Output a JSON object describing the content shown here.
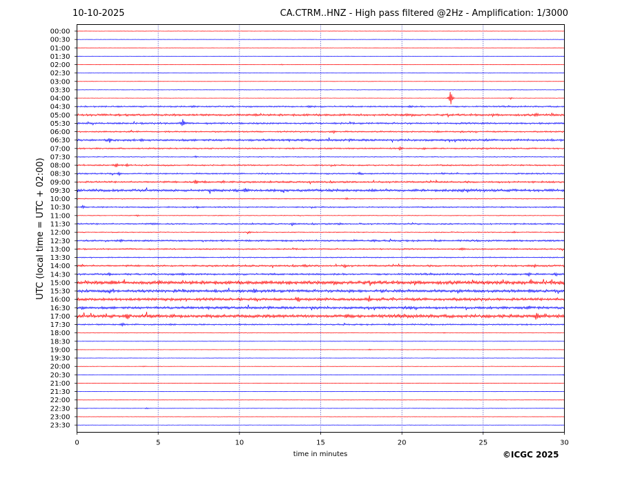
{
  "header": {
    "date": "10-10-2025",
    "title": "CA.CTRM..HNZ - High pass filtered @2Hz - Amplification: 1/3000"
  },
  "footer": {
    "copyright": "©ICGC 2025"
  },
  "colors": {
    "red": "#ff0000",
    "blue": "#0000ff",
    "grid": "#0000aa",
    "axis": "#000000"
  },
  "chart_data": {
    "type": "line",
    "xlabel": "time in minutes",
    "ylabel": "UTC (local time = UTC + 02:00)",
    "xlim": [
      0,
      30
    ],
    "xticks": [
      0,
      5,
      10,
      15,
      20,
      25,
      30
    ],
    "grid": "vertical dotted lines at x = 5, 10, 15, 20, 25",
    "rows": [
      {
        "label": "00:00",
        "color": "red",
        "activity": 0.05
      },
      {
        "label": "00:30",
        "color": "blue",
        "activity": 0.05
      },
      {
        "label": "01:00",
        "color": "red",
        "activity": 0.05
      },
      {
        "label": "01:30",
        "color": "blue",
        "activity": 0.05
      },
      {
        "label": "02:00",
        "color": "red",
        "activity": 0.05,
        "events": [
          {
            "x": 12.6,
            "amp": 0.15
          }
        ]
      },
      {
        "label": "02:30",
        "color": "blue",
        "activity": 0.05
      },
      {
        "label": "03:00",
        "color": "red",
        "activity": 0.05
      },
      {
        "label": "03:30",
        "color": "blue",
        "activity": 0.08
      },
      {
        "label": "04:00",
        "color": "red",
        "activity": 0.05,
        "events": [
          {
            "x": 23.0,
            "amp": 2.7
          },
          {
            "x": 26.7,
            "amp": 0.3
          }
        ]
      },
      {
        "label": "04:30",
        "color": "blue",
        "activity": 0.2,
        "events": [
          {
            "x": 7.2,
            "amp": 0.3
          },
          {
            "x": 14.3,
            "amp": 0.3
          },
          {
            "x": 20.5,
            "amp": 0.3
          }
        ]
      },
      {
        "label": "05:00",
        "color": "red",
        "activity": 0.3,
        "events": [
          {
            "x": 11.0,
            "amp": 0.35
          },
          {
            "x": 20.3,
            "amp": 0.3
          },
          {
            "x": 28.3,
            "amp": 0.35
          }
        ]
      },
      {
        "label": "05:30",
        "color": "blue",
        "activity": 0.25,
        "events": [
          {
            "x": 6.5,
            "amp": 1.2
          }
        ]
      },
      {
        "label": "06:00",
        "color": "red",
        "activity": 0.2,
        "events": [
          {
            "x": 15.8,
            "amp": 0.35
          },
          {
            "x": 22.2,
            "amp": 0.3
          }
        ]
      },
      {
        "label": "06:30",
        "color": "blue",
        "activity": 0.3,
        "events": [
          {
            "x": 2.0,
            "amp": 0.7
          },
          {
            "x": 4.0,
            "amp": 0.35
          }
        ]
      },
      {
        "label": "07:00",
        "color": "red",
        "activity": 0.2,
        "events": [
          {
            "x": 19.9,
            "amp": 0.45
          },
          {
            "x": 21.4,
            "amp": 0.35
          }
        ]
      },
      {
        "label": "07:30",
        "color": "blue",
        "activity": 0.12,
        "events": [
          {
            "x": 7.3,
            "amp": 0.25
          }
        ]
      },
      {
        "label": "08:00",
        "color": "red",
        "activity": 0.2,
        "events": [
          {
            "x": 2.4,
            "amp": 0.8
          },
          {
            "x": 3.1,
            "amp": 0.4
          }
        ]
      },
      {
        "label": "08:30",
        "color": "blue",
        "activity": 0.2,
        "events": [
          {
            "x": 2.6,
            "amp": 0.4
          },
          {
            "x": 17.4,
            "amp": 0.4
          }
        ]
      },
      {
        "label": "09:00",
        "color": "red",
        "activity": 0.25,
        "events": [
          {
            "x": 7.3,
            "amp": 0.8
          },
          {
            "x": 7.9,
            "amp": 0.4
          },
          {
            "x": 9.0,
            "amp": 0.35
          }
        ]
      },
      {
        "label": "09:30",
        "color": "blue",
        "activity": 0.35,
        "events": [
          {
            "x": 10.4,
            "amp": 0.7
          },
          {
            "x": 18.2,
            "amp": 0.35
          }
        ]
      },
      {
        "label": "10:00",
        "color": "red",
        "activity": 0.12,
        "events": [
          {
            "x": 16.6,
            "amp": 0.3
          }
        ]
      },
      {
        "label": "10:30",
        "color": "blue",
        "activity": 0.18,
        "events": [
          {
            "x": 0.4,
            "amp": 0.3
          },
          {
            "x": 7.4,
            "amp": 0.3
          }
        ]
      },
      {
        "label": "11:00",
        "color": "red",
        "activity": 0.1,
        "events": [
          {
            "x": 3.7,
            "amp": 0.25
          }
        ]
      },
      {
        "label": "11:30",
        "color": "blue",
        "activity": 0.2,
        "events": [
          {
            "x": 4.7,
            "amp": 0.3
          },
          {
            "x": 13.3,
            "amp": 0.3
          },
          {
            "x": 16.2,
            "amp": 0.3
          }
        ]
      },
      {
        "label": "12:00",
        "color": "red",
        "activity": 0.12,
        "events": [
          {
            "x": 10.6,
            "amp": 0.3
          },
          {
            "x": 26.9,
            "amp": 0.3
          }
        ]
      },
      {
        "label": "12:30",
        "color": "blue",
        "activity": 0.25,
        "events": [
          {
            "x": 2.7,
            "amp": 0.3
          },
          {
            "x": 18.3,
            "amp": 0.45
          }
        ]
      },
      {
        "label": "13:00",
        "color": "red",
        "activity": 0.2,
        "events": [
          {
            "x": 23.7,
            "amp": 0.4
          },
          {
            "x": 26.9,
            "amp": 0.3
          }
        ]
      },
      {
        "label": "13:30",
        "color": "blue",
        "activity": 0.15
      },
      {
        "label": "14:00",
        "color": "red",
        "activity": 0.25,
        "events": [
          {
            "x": 14.0,
            "amp": 0.35
          },
          {
            "x": 16.5,
            "amp": 0.45
          },
          {
            "x": 28.2,
            "amp": 0.45
          }
        ]
      },
      {
        "label": "14:30",
        "color": "blue",
        "activity": 0.25,
        "events": [
          {
            "x": 2.0,
            "amp": 0.35
          },
          {
            "x": 6.5,
            "amp": 0.35
          },
          {
            "x": 27.8,
            "amp": 0.45
          },
          {
            "x": 29.5,
            "amp": 0.45
          }
        ]
      },
      {
        "label": "15:00",
        "color": "red",
        "activity": 0.5,
        "events": [
          {
            "x": 2.2,
            "amp": 0.5
          },
          {
            "x": 5.0,
            "amp": 0.5
          },
          {
            "x": 13.1,
            "amp": 0.35
          },
          {
            "x": 29.8,
            "amp": 0.55
          }
        ]
      },
      {
        "label": "15:30",
        "color": "blue",
        "activity": 0.4,
        "events": [
          {
            "x": 8.5,
            "amp": 0.45
          },
          {
            "x": 10.9,
            "amp": 0.45
          },
          {
            "x": 27.9,
            "amp": 0.4
          }
        ]
      },
      {
        "label": "16:00",
        "color": "red",
        "activity": 0.4,
        "events": [
          {
            "x": 13.6,
            "amp": 0.9
          },
          {
            "x": 18.0,
            "amp": 1.0
          }
        ]
      },
      {
        "label": "16:30",
        "color": "blue",
        "activity": 0.35,
        "events": [
          {
            "x": 0.3,
            "amp": 0.35
          },
          {
            "x": 14.6,
            "amp": 0.35
          },
          {
            "x": 27.8,
            "amp": 0.4
          }
        ]
      },
      {
        "label": "17:00",
        "color": "red",
        "activity": 0.45,
        "events": [
          {
            "x": 3.1,
            "amp": 0.8
          },
          {
            "x": 16.6,
            "amp": 0.8
          },
          {
            "x": 28.3,
            "amp": 1.4
          },
          {
            "x": 28.8,
            "amp": 0.5
          }
        ]
      },
      {
        "label": "17:30",
        "color": "blue",
        "activity": 0.2,
        "events": [
          {
            "x": 2.8,
            "amp": 0.35
          },
          {
            "x": 5.8,
            "amp": 0.3
          }
        ]
      },
      {
        "label": "18:00",
        "color": "red",
        "activity": 0.05,
        "events": [
          {
            "x": 22.6,
            "amp": 0.2
          }
        ]
      },
      {
        "label": "18:30",
        "color": "blue",
        "activity": 0.05
      },
      {
        "label": "19:00",
        "color": "red",
        "activity": 0.05,
        "events": [
          {
            "x": 18.0,
            "amp": 0.2
          }
        ]
      },
      {
        "label": "19:30",
        "color": "blue",
        "activity": 0.05
      },
      {
        "label": "20:00",
        "color": "red",
        "activity": 0.05,
        "events": [
          {
            "x": 4.1,
            "amp": 0.2
          }
        ]
      },
      {
        "label": "20:30",
        "color": "blue",
        "activity": 0.05,
        "events": [
          {
            "x": 30.0,
            "amp": 0.2
          }
        ]
      },
      {
        "label": "21:00",
        "color": "red",
        "activity": 0.05
      },
      {
        "label": "21:30",
        "color": "blue",
        "activity": 0.05
      },
      {
        "label": "22:00",
        "color": "red",
        "activity": 0.05
      },
      {
        "label": "22:30",
        "color": "blue",
        "activity": 0.05,
        "events": [
          {
            "x": 4.3,
            "amp": 0.2
          }
        ]
      },
      {
        "label": "23:00",
        "color": "red",
        "activity": 0.05
      },
      {
        "label": "23:30",
        "color": "blue",
        "activity": 0.05
      }
    ]
  }
}
